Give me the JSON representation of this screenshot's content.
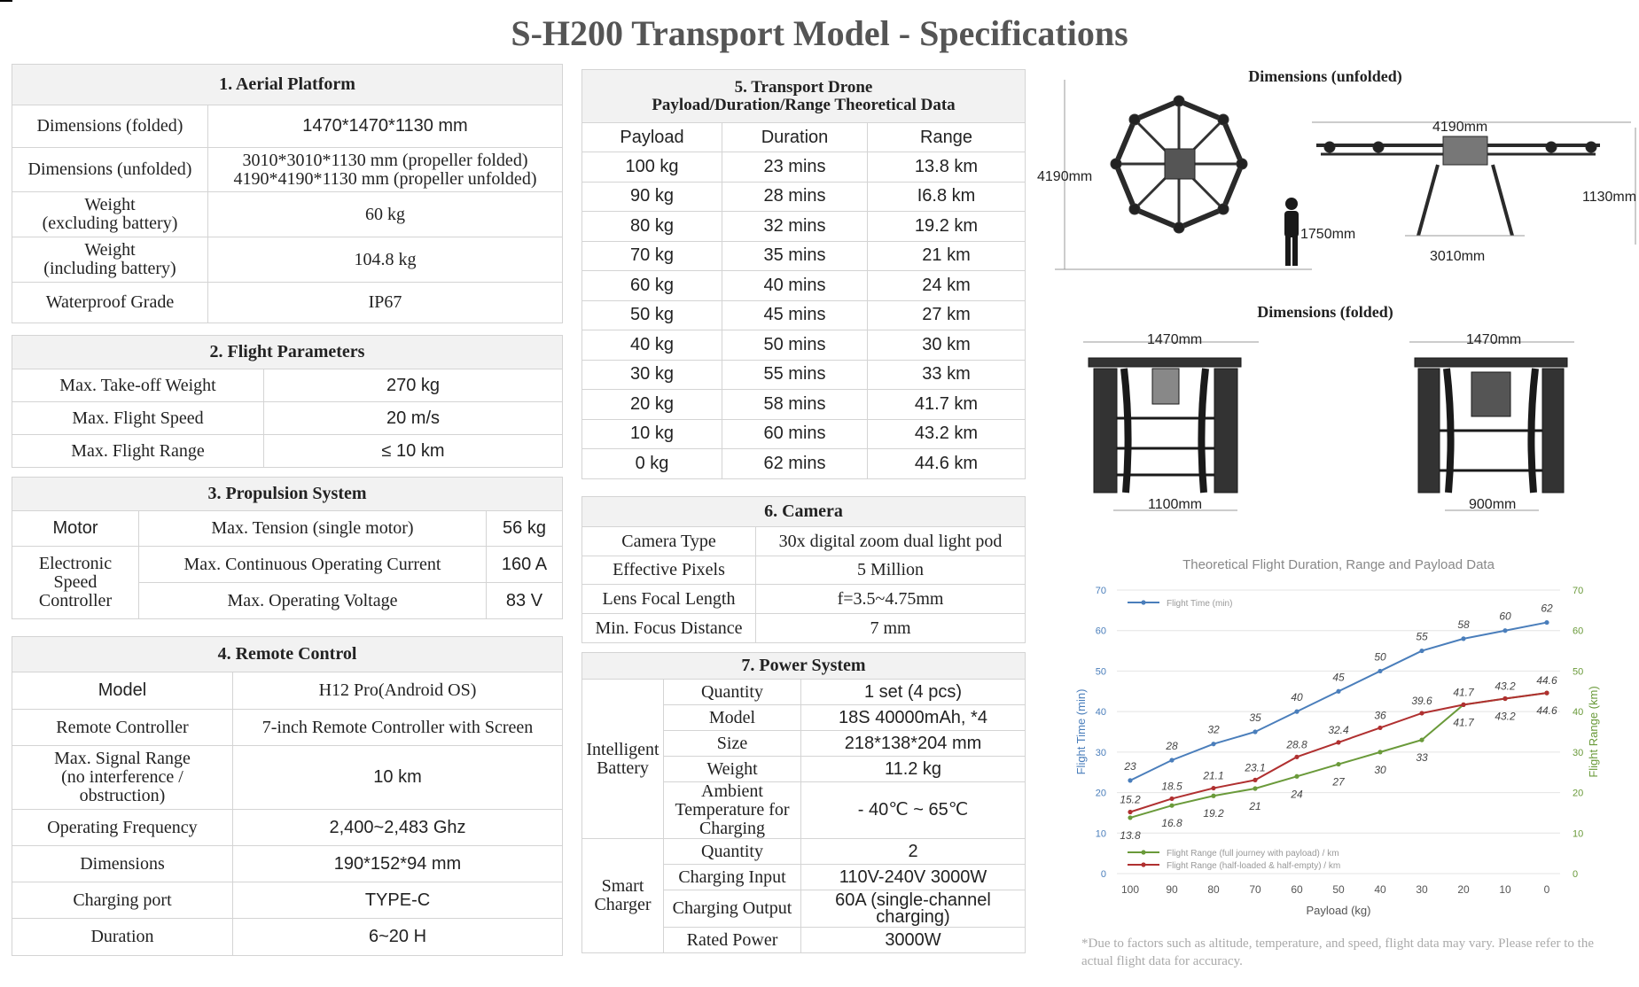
{
  "title": "S-H200 Transport Model - Specifications",
  "aerial": {
    "header": "1. Aerial Platform",
    "rows": [
      {
        "label": "Dimensions (folded)",
        "value": "1470*1470*1130 mm"
      },
      {
        "label": "Dimensions (unfolded)",
        "value": "3010*3010*1130 mm (propeller folded)\n4190*4190*1130 mm (propeller unfolded)"
      },
      {
        "label": "Weight\n(excluding battery)",
        "value": "60 kg"
      },
      {
        "label": "Weight\n(including battery)",
        "value": "104.8 kg"
      },
      {
        "label": "Waterproof Grade",
        "value": "IP67"
      }
    ]
  },
  "flight": {
    "header": "2. Flight Parameters",
    "rows": [
      {
        "label": "Max. Take-off Weight",
        "value": "270 kg"
      },
      {
        "label": "Max. Flight Speed",
        "value": "20 m/s"
      },
      {
        "label": "Max. Flight Range",
        "value": "≤ 10 km"
      }
    ]
  },
  "propulsion": {
    "header": "3. Propulsion System",
    "motor_label": "Motor",
    "motor_param": "Max. Tension (single motor)",
    "motor_value": "56 kg",
    "esc_label": "Electronic\nSpeed\nController",
    "esc_rows": [
      {
        "param": "Max. Continuous Operating Current",
        "value": "160 A"
      },
      {
        "param": "Max. Operating Voltage",
        "value": "83 V"
      }
    ]
  },
  "remote": {
    "header": "4. Remote Control",
    "rows": [
      {
        "label": "Model",
        "value": "H12 Pro(Android OS)"
      },
      {
        "label": "Remote Controller",
        "value": "7-inch Remote Controller with Screen"
      },
      {
        "label": "Max. Signal Range\n(no interference /\nobstruction)",
        "value": "10 km"
      },
      {
        "label": "Operating Frequency",
        "value": "2,400~2,483 Ghz"
      },
      {
        "label": "Dimensions",
        "value": "190*152*94 mm"
      },
      {
        "label": "Charging port",
        "value": "TYPE-C"
      },
      {
        "label": "Duration",
        "value": "6~20 H"
      }
    ]
  },
  "transport": {
    "header": "5. Transport Drone\nPayload/Duration/Range Theoretical Data",
    "columns": [
      "Payload",
      "Duration",
      "Range"
    ],
    "rows": [
      [
        "100 kg",
        "23 mins",
        "13.8 km"
      ],
      [
        "90 kg",
        "28 mins",
        "I6.8 km"
      ],
      [
        "80 kg",
        "32 mins",
        "19.2 km"
      ],
      [
        "70 kg",
        "35 mins",
        "21 km"
      ],
      [
        "60 kg",
        "40 mins",
        "24 km"
      ],
      [
        "50 kg",
        "45 mins",
        "27 km"
      ],
      [
        "40 kg",
        "50 mins",
        "30 km"
      ],
      [
        "30 kg",
        "55 mins",
        "33 km"
      ],
      [
        "20 kg",
        "58 mins",
        "41.7 km"
      ],
      [
        "10 kg",
        "60 mins",
        "43.2 km"
      ],
      [
        "0 kg",
        "62 mins",
        "44.6 km"
      ]
    ]
  },
  "camera": {
    "header": "6. Camera",
    "rows": [
      {
        "label": "Camera Type",
        "value": "30x digital zoom dual light pod"
      },
      {
        "label": "Effective Pixels",
        "value": "5 Million"
      },
      {
        "label": "Lens Focal Length",
        "value": "f=3.5~4.75mm"
      },
      {
        "label": "Min. Focus Distance",
        "value": "7 mm"
      }
    ]
  },
  "power": {
    "header": "7. Power System",
    "battery_label": "Intelligent\nBattery",
    "battery_rows": [
      {
        "label": "Quantity",
        "value": "1 set (4 pcs)"
      },
      {
        "label": "Model",
        "value": "18S 40000mAh, *4"
      },
      {
        "label": "Size",
        "value": "218*138*204 mm"
      },
      {
        "label": "Weight",
        "value": "11.2 kg"
      },
      {
        "label": "Ambient\nTemperature for\nCharging",
        "value": "- 40℃ ~ 65℃"
      }
    ],
    "charger_label": "Smart\nCharger",
    "charger_rows": [
      {
        "label": "Quantity",
        "value": "2"
      },
      {
        "label": "Charging Input",
        "value": "110V-240V 3000W"
      },
      {
        "label": "Charging Output",
        "value": "60A (single-channel\ncharging)"
      },
      {
        "label": "Rated Power",
        "value": "3000W"
      }
    ]
  },
  "dims": {
    "unfolded_title": "Dimensions (unfolded)",
    "folded_title": "Dimensions (folded)",
    "top_span": "4190mm",
    "top_height": "4190mm",
    "person_height": "1750mm",
    "side_span": "4190mm",
    "side_height": "1130mm",
    "side_base": "3010mm",
    "fold_front_top": "1470mm",
    "fold_front_bottom": "1100mm",
    "fold_side_top": "1470mm",
    "fold_side_bottom": "900mm"
  },
  "footnote": "*Due to factors such as altitude, temperature, and speed, flight data may vary. Please refer to the actual flight data for accuracy.",
  "chart_data": {
    "type": "line",
    "title": "Theoretical Flight Duration, Range and Payload Data",
    "xlabel": "Payload (kg)",
    "ylabel": "Flight Time (min)",
    "y2label": "Flight Range (km)",
    "categories": [
      100,
      90,
      80,
      70,
      60,
      50,
      40,
      30,
      20,
      10,
      0
    ],
    "ylim": [
      0,
      70
    ],
    "yticks": [
      0,
      10,
      20,
      30,
      40,
      50,
      60,
      70
    ],
    "grid": true,
    "legend_top": "upper-left",
    "legend_bottom": "lower-left",
    "series": [
      {
        "name": "Flight Time (min)",
        "axis": "left",
        "color": "#4a7ebb",
        "values": [
          23,
          28,
          32,
          35,
          40,
          45,
          50,
          55,
          58,
          60,
          62
        ],
        "labels": [
          "23",
          "28",
          "32",
          "35",
          "40",
          "45",
          "50",
          "55",
          "58",
          "60",
          "62"
        ]
      },
      {
        "name": "Flight Range (full journey with payload) / km",
        "axis": "right",
        "color": "#6a9a3a",
        "values": [
          13.8,
          16.8,
          19.2,
          21,
          24,
          27,
          30,
          33,
          41.7,
          43.2,
          44.6
        ],
        "labels": [
          "13.8",
          "16.8",
          "19.2",
          "21",
          "24",
          "27",
          "30",
          "33",
          "41.7",
          "43.2",
          "44.6"
        ]
      },
      {
        "name": "Flight Range (half-loaded & half-empty) / km",
        "axis": "right",
        "color": "#b03030",
        "values": [
          15.2,
          18.5,
          21.1,
          23.1,
          28.8,
          32.4,
          36,
          39.6,
          41.7,
          43.2,
          44.6
        ],
        "labels": [
          "15.2",
          "18.5",
          "21.1",
          "23.1",
          "28.8",
          "32.4",
          "36",
          "39.6",
          "41.7",
          "43.2",
          "44.6"
        ]
      }
    ]
  },
  "colors": {
    "header_bg": "#f2f2f2",
    "border": "#d4d4d4",
    "title": "#555555",
    "axis_left": "#4a7ebb",
    "axis_right": "#6a9a3a"
  }
}
